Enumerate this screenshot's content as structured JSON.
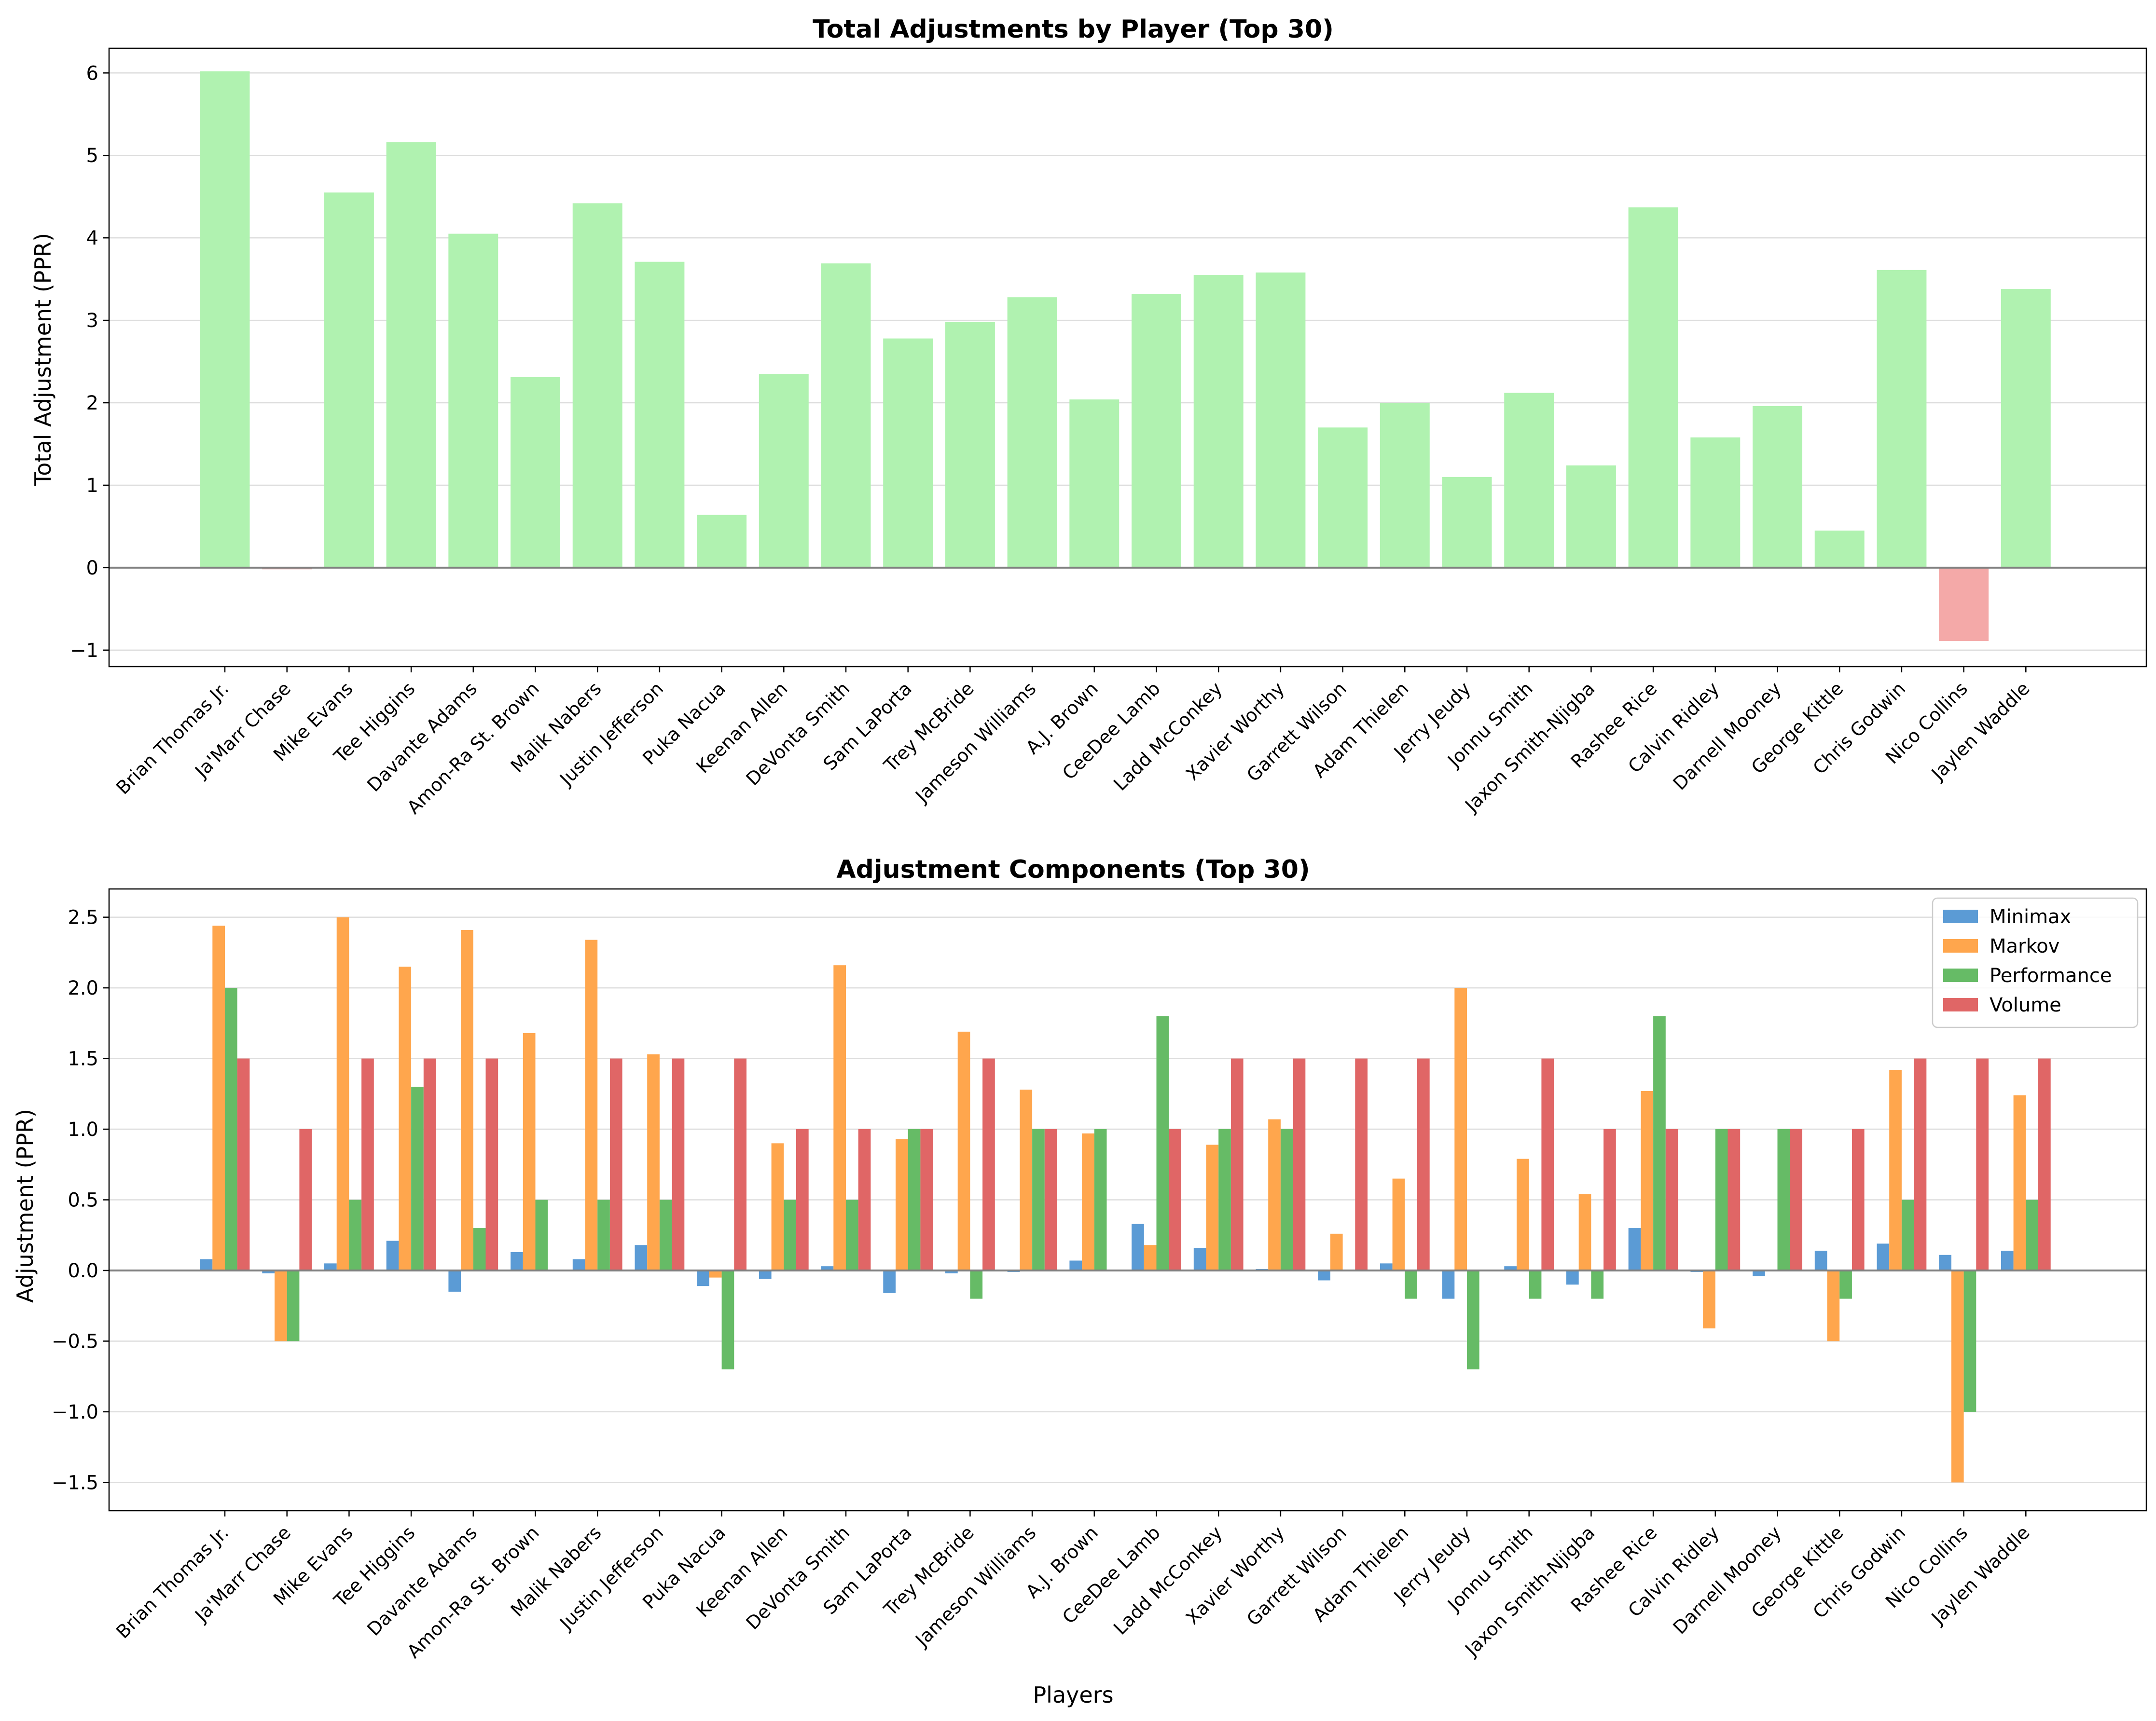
{
  "chart_data": [
    {
      "type": "bar",
      "title": "Total Adjustments by Player (Top 30)",
      "xlabel": "",
      "ylabel": "Total Adjustment (PPR)",
      "ylim": [
        -1.2,
        6.3
      ],
      "yticks": [
        -1,
        0,
        1,
        2,
        3,
        4,
        5,
        6
      ],
      "ytick_labels": [
        "−1",
        "0",
        "1",
        "2",
        "3",
        "4",
        "5",
        "6"
      ],
      "grid": true,
      "colors": {
        "positive": "#b0f2b0",
        "negative": "#f4a9a8"
      },
      "categories": [
        "Brian Thomas Jr.",
        "Ja'Marr Chase",
        "Mike Evans",
        "Tee Higgins",
        "Davante Adams",
        "Amon-Ra St. Brown",
        "Malik Nabers",
        "Justin Jefferson",
        "Puka Nacua",
        "Keenan Allen",
        "DeVonta Smith",
        "Sam LaPorta",
        "Trey McBride",
        "Jameson Williams",
        "A.J. Brown",
        "CeeDee Lamb",
        "Ladd McConkey",
        "Xavier Worthy",
        "Garrett Wilson",
        "Adam Thielen",
        "Jerry Jeudy",
        "Jonnu Smith",
        "Jaxon Smith-Njigba",
        "Rashee Rice",
        "Calvin Ridley",
        "Darnell Mooney",
        "George Kittle",
        "Chris Godwin",
        "Nico Collins",
        "Jaylen Waddle"
      ],
      "values": [
        6.02,
        -0.02,
        4.55,
        5.16,
        4.05,
        2.31,
        4.42,
        3.71,
        0.64,
        2.35,
        3.69,
        2.78,
        2.98,
        3.28,
        2.04,
        3.32,
        3.55,
        3.58,
        1.7,
        2.0,
        1.1,
        2.12,
        1.24,
        4.37,
        1.58,
        1.96,
        0.45,
        3.61,
        -0.89,
        3.38
      ]
    },
    {
      "type": "bar",
      "title": "Adjustment Components (Top 30)",
      "xlabel": "Players",
      "ylabel": "Adjustment (PPR)",
      "ylim": [
        -1.7,
        2.7
      ],
      "yticks": [
        -1.5,
        -1.0,
        -0.5,
        0.0,
        0.5,
        1.0,
        1.5,
        2.0,
        2.5
      ],
      "ytick_labels": [
        "−1.5",
        "−1.0",
        "−0.5",
        "0.0",
        "0.5",
        "1.0",
        "1.5",
        "2.0",
        "2.5"
      ],
      "grid": true,
      "legend": "top-right",
      "categories": [
        "Brian Thomas Jr.",
        "Ja'Marr Chase",
        "Mike Evans",
        "Tee Higgins",
        "Davante Adams",
        "Amon-Ra St. Brown",
        "Malik Nabers",
        "Justin Jefferson",
        "Puka Nacua",
        "Keenan Allen",
        "DeVonta Smith",
        "Sam LaPorta",
        "Trey McBride",
        "Jameson Williams",
        "A.J. Brown",
        "CeeDee Lamb",
        "Ladd McConkey",
        "Xavier Worthy",
        "Garrett Wilson",
        "Adam Thielen",
        "Jerry Jeudy",
        "Jonnu Smith",
        "Jaxon Smith-Njigba",
        "Rashee Rice",
        "Calvin Ridley",
        "Darnell Mooney",
        "George Kittle",
        "Chris Godwin",
        "Nico Collins",
        "Jaylen Waddle"
      ],
      "series": [
        {
          "name": "Minimax",
          "color": "#5b9bd5",
          "values": [
            0.08,
            -0.02,
            0.05,
            0.21,
            -0.15,
            0.13,
            0.08,
            0.18,
            -0.11,
            -0.06,
            0.03,
            -0.16,
            -0.02,
            -0.01,
            0.07,
            0.33,
            0.16,
            0.01,
            -0.07,
            0.05,
            -0.2,
            0.03,
            -0.1,
            0.3,
            -0.01,
            -0.04,
            0.14,
            0.19,
            0.11,
            0.14
          ]
        },
        {
          "name": "Markov",
          "color": "#ffa64d",
          "values": [
            2.44,
            -0.5,
            2.5,
            2.15,
            2.41,
            1.68,
            2.34,
            1.53,
            -0.05,
            0.9,
            2.16,
            0.93,
            1.69,
            1.28,
            0.97,
            0.18,
            0.89,
            1.07,
            0.26,
            0.65,
            2.0,
            0.79,
            0.54,
            1.27,
            -0.41,
            0.0,
            -0.5,
            1.42,
            -1.5,
            1.24
          ]
        },
        {
          "name": "Performance",
          "color": "#66bb66",
          "values": [
            2.0,
            -0.5,
            0.5,
            1.3,
            0.3,
            0.5,
            0.5,
            0.5,
            -0.7,
            0.5,
            0.5,
            1.0,
            -0.2,
            1.0,
            1.0,
            1.8,
            1.0,
            1.0,
            0.0,
            -0.2,
            -0.7,
            -0.2,
            -0.2,
            1.8,
            1.0,
            1.0,
            -0.2,
            0.5,
            -1.0,
            0.5
          ]
        },
        {
          "name": "Volume",
          "color": "#e06666",
          "values": [
            1.5,
            1.0,
            1.5,
            1.5,
            1.5,
            0.0,
            1.5,
            1.5,
            1.5,
            1.0,
            1.0,
            1.0,
            1.5,
            1.0,
            0.0,
            1.0,
            1.5,
            1.5,
            1.5,
            1.5,
            0.0,
            1.5,
            1.0,
            1.0,
            1.0,
            1.0,
            1.0,
            1.5,
            1.5,
            1.5
          ]
        }
      ]
    }
  ]
}
